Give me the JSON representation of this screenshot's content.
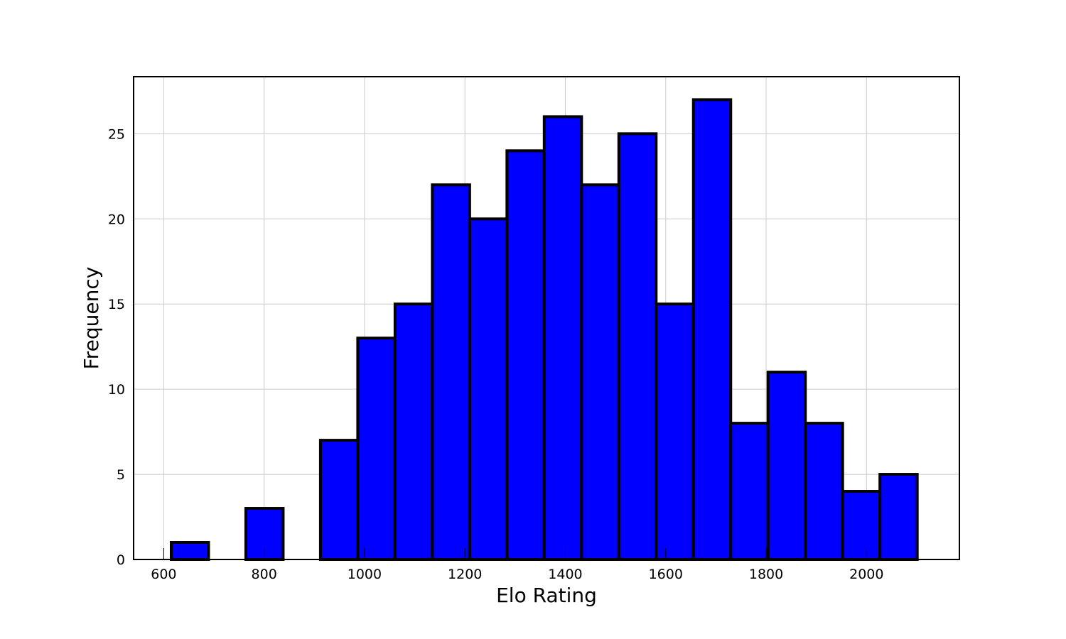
{
  "chart_data": {
    "type": "bar",
    "title": "",
    "xlabel": "Elo Rating",
    "ylabel": "Frequency",
    "bin_width": 74.3,
    "bins": [
      {
        "x0": 615.0,
        "x1": 689.3,
        "count": 1
      },
      {
        "x0": 689.3,
        "x1": 763.6,
        "count": 0
      },
      {
        "x0": 763.6,
        "x1": 837.9,
        "count": 3
      },
      {
        "x0": 837.9,
        "x1": 912.2,
        "count": 0
      },
      {
        "x0": 912.2,
        "x1": 986.5,
        "count": 7
      },
      {
        "x0": 986.5,
        "x1": 1060.8,
        "count": 13
      },
      {
        "x0": 1060.8,
        "x1": 1135.1,
        "count": 15
      },
      {
        "x0": 1135.1,
        "x1": 1209.4,
        "count": 22
      },
      {
        "x0": 1209.4,
        "x1": 1283.7,
        "count": 20
      },
      {
        "x0": 1283.7,
        "x1": 1358.0,
        "count": 24
      },
      {
        "x0": 1358.0,
        "x1": 1432.3,
        "count": 26
      },
      {
        "x0": 1432.3,
        "x1": 1506.6,
        "count": 22
      },
      {
        "x0": 1506.6,
        "x1": 1580.9,
        "count": 25
      },
      {
        "x0": 1580.9,
        "x1": 1655.2,
        "count": 15
      },
      {
        "x0": 1655.2,
        "x1": 1729.5,
        "count": 27
      },
      {
        "x0": 1729.5,
        "x1": 1803.8,
        "count": 8
      },
      {
        "x0": 1803.8,
        "x1": 1878.1,
        "count": 11
      },
      {
        "x0": 1878.1,
        "x1": 1952.4,
        "count": 8
      },
      {
        "x0": 1952.4,
        "x1": 2026.7,
        "count": 4
      },
      {
        "x0": 2026.7,
        "x1": 2101.0,
        "count": 5
      }
    ],
    "xlim": [
      540,
      2185
    ],
    "ylim": [
      0,
      28.35
    ],
    "xticks": [
      600,
      800,
      1000,
      1200,
      1400,
      1600,
      1800,
      2000
    ],
    "yticks": [
      0,
      5,
      10,
      15,
      20,
      25
    ],
    "grid": true,
    "bar_color": "#0000ff",
    "edge_color": "#000000"
  }
}
